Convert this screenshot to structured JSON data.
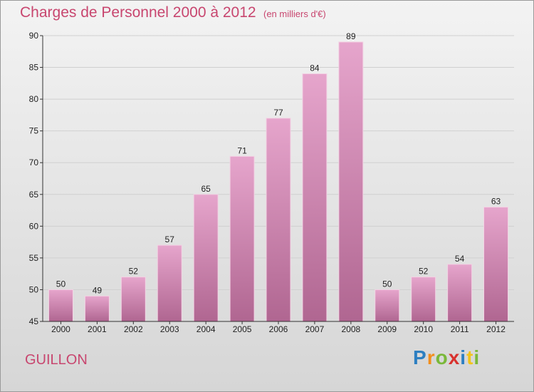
{
  "title": "Charges de Personnel 2000 à 2012",
  "subtitle": "(en milliers d'€)",
  "location": "GUILLON",
  "logo": {
    "letters": [
      {
        "ch": "P",
        "color": "#2d7fc1"
      },
      {
        "ch": "r",
        "color": "#f28e1c"
      },
      {
        "ch": "o",
        "color": "#7ab83a"
      },
      {
        "ch": "x",
        "color": "#d8322e"
      },
      {
        "ch": "i",
        "color": "#2d7fc1"
      },
      {
        "ch": "t",
        "color": "#f2c418"
      },
      {
        "ch": "i",
        "color": "#7ab83a"
      }
    ]
  },
  "colors": {
    "bar_top": "#e6a5cc",
    "bar_bottom": "#b06691",
    "accent": "#c8466f"
  },
  "chart_data": {
    "type": "bar",
    "categories": [
      "2000",
      "2001",
      "2002",
      "2003",
      "2004",
      "2005",
      "2006",
      "2007",
      "2008",
      "2009",
      "2010",
      "2011",
      "2012"
    ],
    "values": [
      50,
      49,
      52,
      57,
      65,
      71,
      77,
      84,
      89,
      50,
      52,
      54,
      63
    ],
    "ylim": [
      45,
      90
    ],
    "yticks": [
      45,
      50,
      55,
      60,
      65,
      70,
      75,
      80,
      85,
      90
    ],
    "grid": true
  }
}
